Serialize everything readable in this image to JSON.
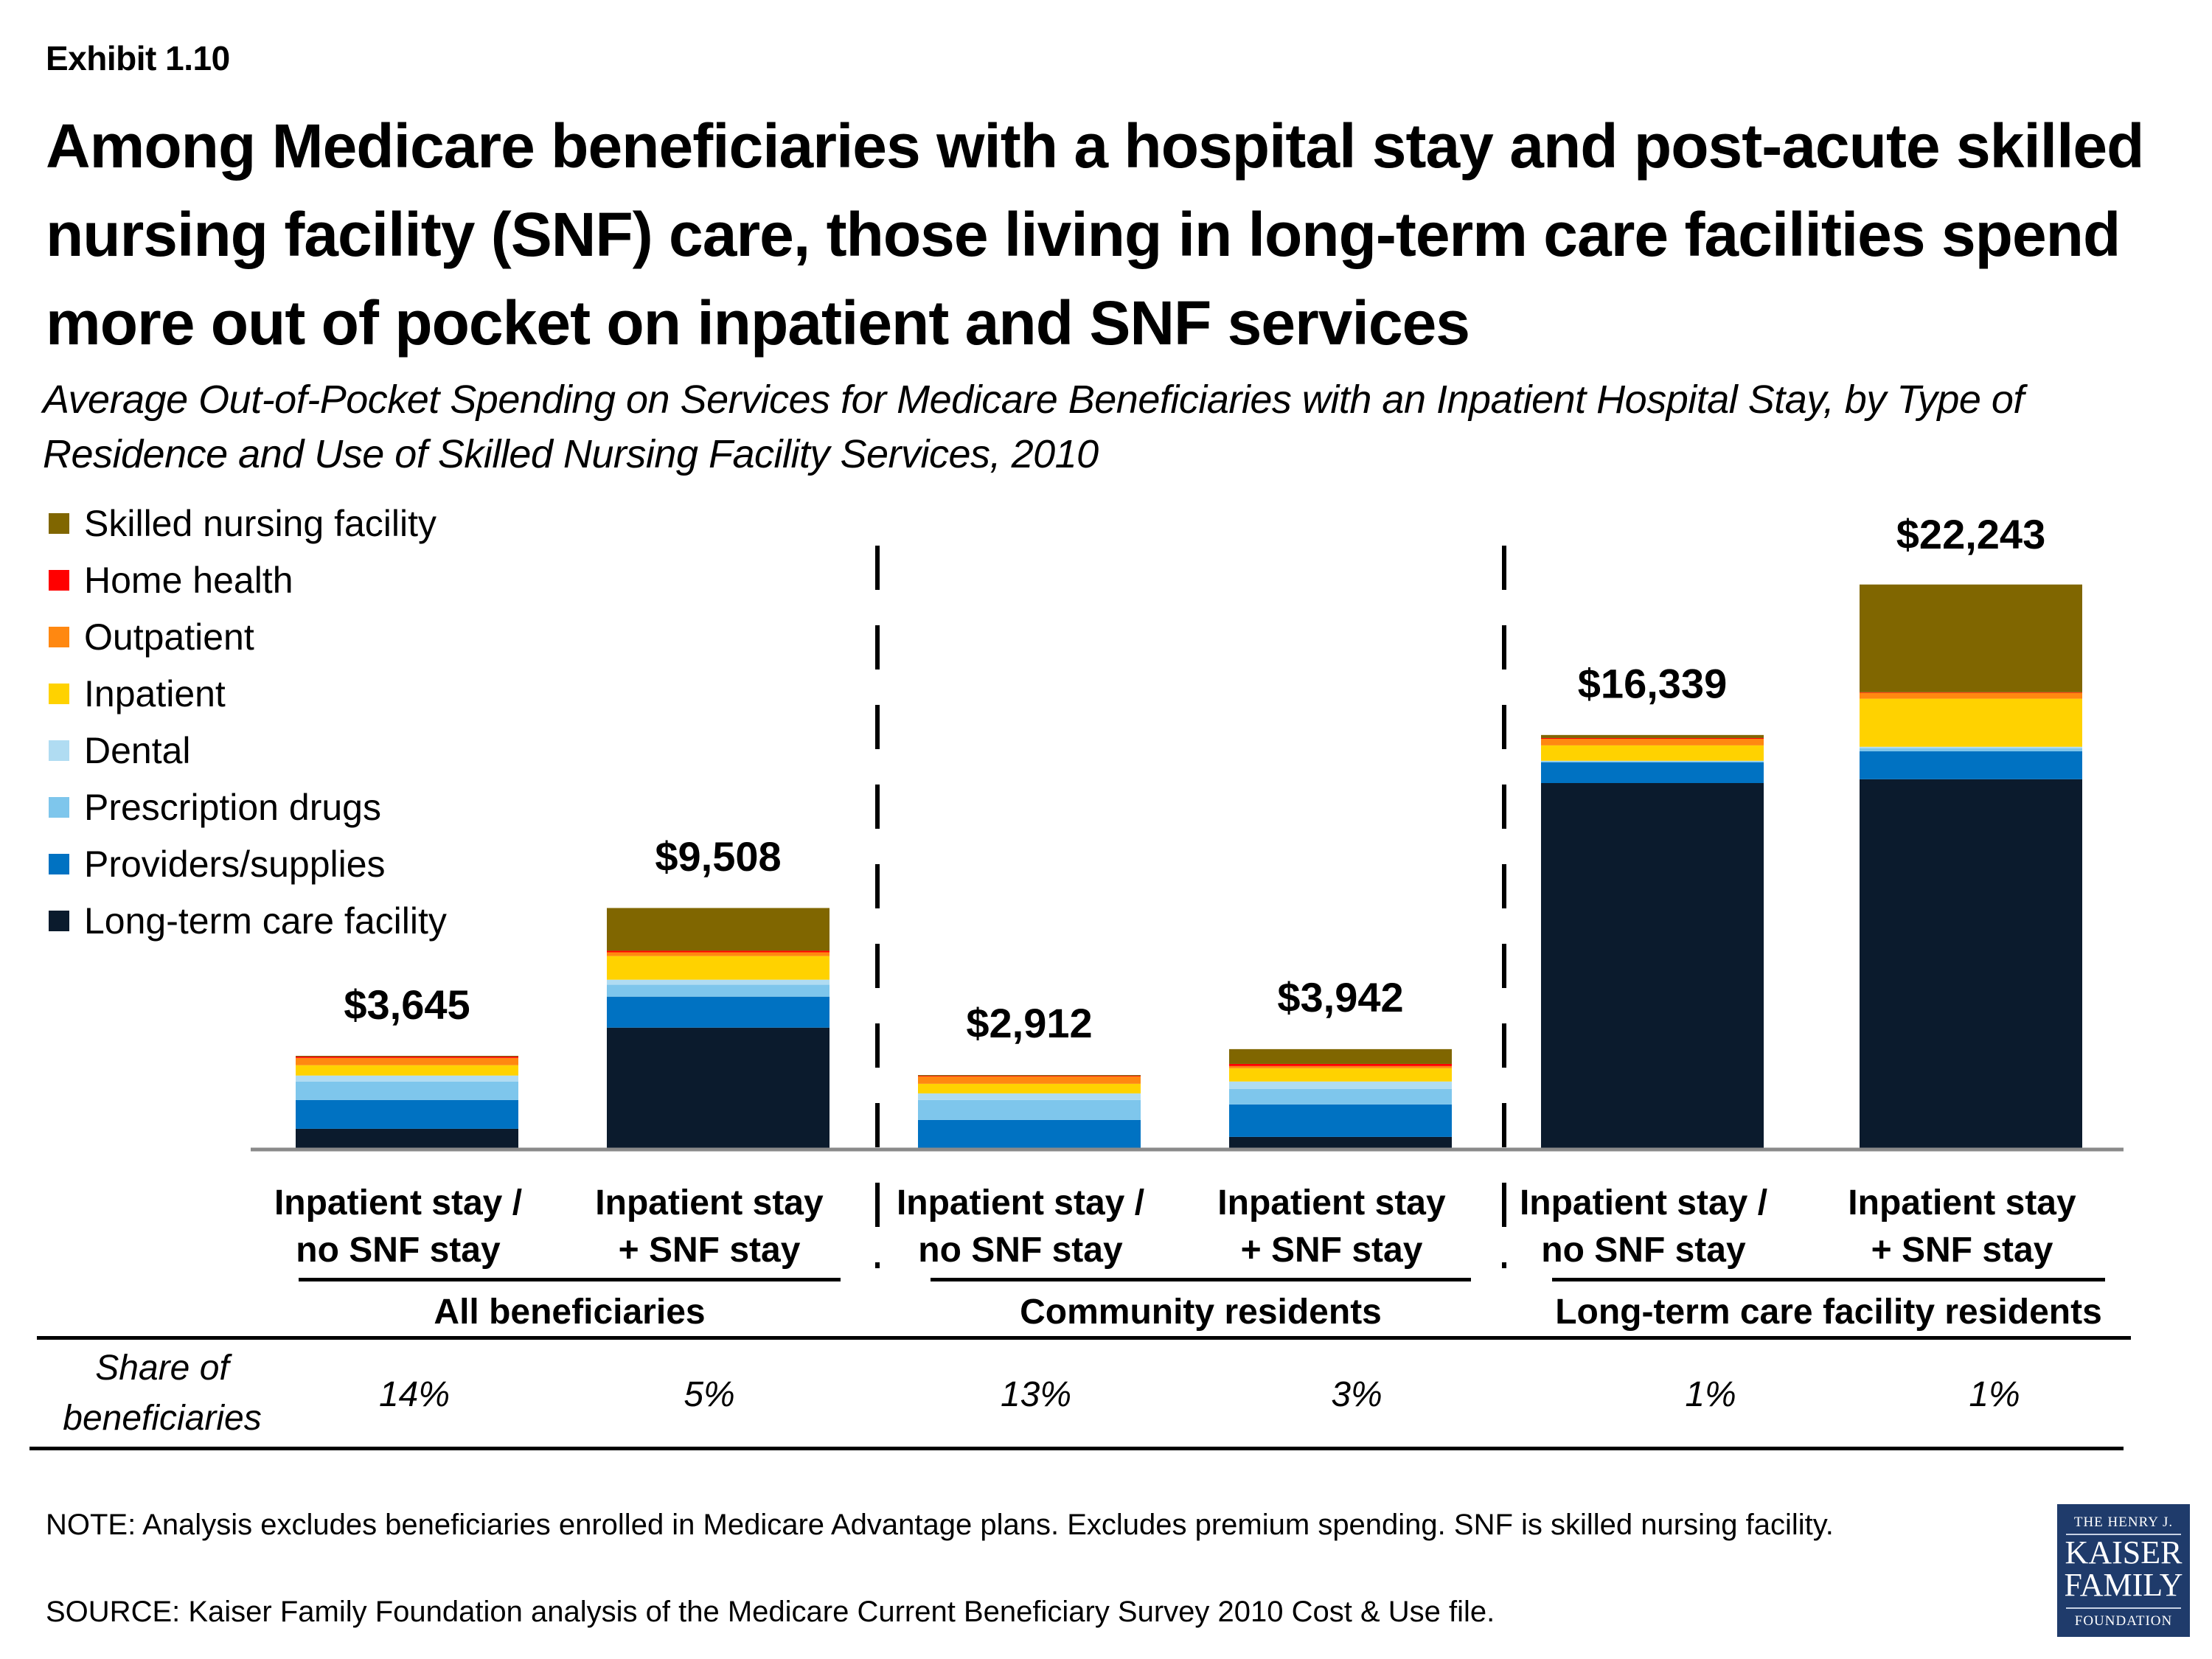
{
  "exhibit_label": "Exhibit 1.10",
  "title": "Among Medicare beneficiaries with a hospital stay and post-acute skilled nursing facility (SNF) care, those living in long-term care facilities spend more out of pocket on inpatient and SNF services",
  "subtitle": "Average Out-of-Pocket Spending on Services for Medicare Beneficiaries with an Inpatient Hospital Stay, by Type of Residence and Use of Skilled Nursing Facility Services, 2010",
  "legend": [
    {
      "label": "Skilled nursing facility",
      "color": "#806600"
    },
    {
      "label": "Home health",
      "color": "#ff0000"
    },
    {
      "label": "Outpatient",
      "color": "#ff8811"
    },
    {
      "label": "Inpatient",
      "color": "#ffd200"
    },
    {
      "label": "Dental",
      "color": "#b0dcf2"
    },
    {
      "label": "Prescription drugs",
      "color": "#7ec6ec"
    },
    {
      "label": "Providers/supplies",
      "color": "#0072c2"
    },
    {
      "label": "Long-term care facility",
      "color": "#0b1b2d"
    }
  ],
  "chart_data": {
    "type": "bar",
    "stacked": true,
    "title": "Average Out-of-Pocket Spending on Services for Medicare Beneficiaries with an Inpatient Hospital Stay, by Type of Residence and Use of Skilled Nursing Facility Services, 2010",
    "xlabel": "",
    "ylabel": "",
    "ylim": [
      0,
      26000
    ],
    "grid": false,
    "legend_position": "top-left",
    "categories": [
      "Inpatient stay / no SNF stay",
      "Inpatient stay + SNF stay",
      "Inpatient stay / no SNF stay",
      "Inpatient stay + SNF stay",
      "Inpatient stay / no SNF stay",
      "Inpatient stay + SNF stay"
    ],
    "category_lines": [
      [
        "Inpatient stay /",
        "no SNF stay"
      ],
      [
        "Inpatient stay",
        "+ SNF stay"
      ],
      [
        "Inpatient stay /",
        "no SNF stay"
      ],
      [
        "Inpatient stay",
        "+ SNF stay"
      ],
      [
        "Inpatient stay /",
        "no SNF stay"
      ],
      [
        "Inpatient stay",
        "+ SNF stay"
      ]
    ],
    "groups": [
      {
        "label": "All beneficiaries",
        "categories": [
          0,
          1
        ]
      },
      {
        "label": "Community residents",
        "categories": [
          2,
          3
        ]
      },
      {
        "label": "Long-term care facility residents",
        "categories": [
          4,
          5
        ]
      }
    ],
    "totals": [
      3645,
      9508,
      2912,
      3942,
      16339,
      22243
    ],
    "total_labels": [
      "$3,645",
      "$9,508",
      "$2,912",
      "$3,942",
      "$16,339",
      "$22,243"
    ],
    "series": [
      {
        "name": "Long-term care facility",
        "values": [
          760,
          4760,
          0,
          440,
          14430,
          14580
        ]
      },
      {
        "name": "Providers/supplies",
        "values": [
          1140,
          1225,
          1110,
          1285,
          820,
          1110
        ]
      },
      {
        "name": "Prescription drugs",
        "values": [
          730,
          470,
          790,
          615,
          40,
          120
        ]
      },
      {
        "name": "Dental",
        "values": [
          235,
          200,
          260,
          290,
          20,
          55
        ]
      },
      {
        "name": "Inpatient",
        "values": [
          410,
          935,
          380,
          525,
          610,
          1900
        ]
      },
      {
        "name": "Outpatient",
        "values": [
          290,
          150,
          290,
          85,
          260,
          235
        ]
      },
      {
        "name": "Home health",
        "values": [
          50,
          60,
          25,
          85,
          30,
          20
        ]
      },
      {
        "name": "Skilled nursing facility",
        "values": [
          30,
          1690,
          30,
          585,
          120,
          4260
        ]
      }
    ],
    "share_of_beneficiaries": [
      "14%",
      "5%",
      "13%",
      "3%",
      "1%",
      "1%"
    ]
  },
  "share_label": [
    "Share of",
    "beneficiaries"
  ],
  "note": "NOTE: Analysis excludes beneficiaries enrolled in Medicare Advantage plans. Excludes premium spending. SNF is skilled nursing facility.",
  "source": "SOURCE: Kaiser Family Foundation analysis of the Medicare Current Beneficiary Survey 2010 Cost & Use file.",
  "logo": {
    "line1": "THE HENRY J.",
    "line2": "KAISER",
    "line3": "FAMILY",
    "line4": "FOUNDATION"
  }
}
